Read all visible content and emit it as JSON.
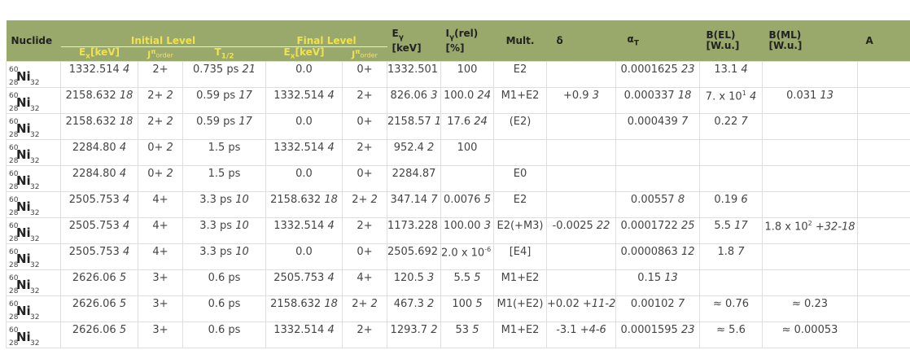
{
  "header": {
    "nuclide": "Nuclide",
    "initial_level": "Initial Level",
    "final_level": "Final Level",
    "egamma_top": "E",
    "egamma_sub": "γ",
    "egamma_unit": "[keV]",
    "igamma_top": "I",
    "igamma_sub": "γ",
    "igamma_rel": "(rel)",
    "igamma_unit": "[%]",
    "mult": "Mult.",
    "delta": "δ",
    "alpha": "α",
    "alpha_sub": "T",
    "bel": "B(EL)",
    "bel_unit": "[W.u.]",
    "bml": "B(ML)",
    "bml_unit": "[W.u.]",
    "last_col": "A",
    "ex_label": "E",
    "ex_sub": "x",
    "ex_unit": "[keV]",
    "jpi_label": "J",
    "jpi_sup": "π",
    "jpi_sub": "order",
    "t_half": "T",
    "t_half_sub": "1/2"
  },
  "rows": [
    {
      "A": "60",
      "sym": "Ni",
      "Z": "28",
      "N": "32",
      "ex_i": "1332.514",
      "ex_i_u": "4",
      "j_i": "2+",
      "j_i_o": "",
      "t_half": "0.735 ps",
      "t_half_u": "21",
      "ex_f": "0.0",
      "ex_f_u": "",
      "j_f": "0+",
      "j_f_o": "",
      "eg": "1332.501",
      "eg_u": "5",
      "ig": "100",
      "ig_u": "",
      "mult": "E2",
      "delta": "",
      "delta_u": "",
      "alpha": "0.0001625",
      "alpha_u": "23",
      "bel": "13.1",
      "bel_u": "4",
      "bml": "",
      "bml_u": ""
    },
    {
      "A": "60",
      "sym": "Ni",
      "Z": "28",
      "N": "32",
      "ex_i": "2158.632",
      "ex_i_u": "18",
      "j_i": "2+",
      "j_i_o": "2",
      "t_half": "0.59 ps",
      "t_half_u": "17",
      "ex_f": "1332.514",
      "ex_f_u": "4",
      "j_f": "2+",
      "j_f_o": "",
      "eg": "826.06",
      "eg_u": "3",
      "ig": "100.0",
      "ig_u": "24",
      "mult": "M1+E2",
      "delta": "+0.9",
      "delta_u": "3",
      "alpha": "0.000337",
      "alpha_u": "18",
      "bel": "7. x 10",
      "bel_sup": "1",
      "bel_u": "4",
      "bml": "0.031",
      "bml_u": "13"
    },
    {
      "A": "60",
      "sym": "Ni",
      "Z": "28",
      "N": "32",
      "ex_i": "2158.632",
      "ex_i_u": "18",
      "j_i": "2+",
      "j_i_o": "2",
      "t_half": "0.59 ps",
      "t_half_u": "17",
      "ex_f": "0.0",
      "ex_f_u": "",
      "j_f": "0+",
      "j_f_o": "",
      "eg": "2158.57",
      "eg_u": "10",
      "ig": "17.6",
      "ig_u": "24",
      "mult": "(E2)",
      "delta": "",
      "delta_u": "",
      "alpha": "0.000439",
      "alpha_u": "7",
      "bel": "0.22",
      "bel_u": "7",
      "bml": "",
      "bml_u": ""
    },
    {
      "A": "60",
      "sym": "Ni",
      "Z": "28",
      "N": "32",
      "ex_i": "2284.80",
      "ex_i_u": "4",
      "j_i": "0+",
      "j_i_o": "2",
      "t_half": "1.5 ps",
      "t_half_u": "",
      "ex_f": "1332.514",
      "ex_f_u": "4",
      "j_f": "2+",
      "j_f_o": "",
      "eg": "952.4",
      "eg_u": "2",
      "ig": "100",
      "ig_u": "",
      "mult": "",
      "delta": "",
      "delta_u": "",
      "alpha": "",
      "alpha_u": "",
      "bel": "",
      "bel_u": "",
      "bml": "",
      "bml_u": ""
    },
    {
      "A": "60",
      "sym": "Ni",
      "Z": "28",
      "N": "32",
      "ex_i": "2284.80",
      "ex_i_u": "4",
      "j_i": "0+",
      "j_i_o": "2",
      "t_half": "1.5 ps",
      "t_half_u": "",
      "ex_f": "0.0",
      "ex_f_u": "",
      "j_f": "0+",
      "j_f_o": "",
      "eg": "2284.87",
      "eg_u": "",
      "ig": "",
      "ig_u": "",
      "mult": "E0",
      "delta": "",
      "delta_u": "",
      "alpha": "",
      "alpha_u": "",
      "bel": "",
      "bel_u": "",
      "bml": "",
      "bml_u": ""
    },
    {
      "A": "60",
      "sym": "Ni",
      "Z": "28",
      "N": "32",
      "ex_i": "2505.753",
      "ex_i_u": "4",
      "j_i": "4+",
      "j_i_o": "",
      "t_half": "3.3 ps",
      "t_half_u": "10",
      "ex_f": "2158.632",
      "ex_f_u": "18",
      "j_f": "2+",
      "j_f_o": "2",
      "eg": "347.14",
      "eg_u": "7",
      "ig": "0.0076",
      "ig_u": "5",
      "mult": "E2",
      "delta": "",
      "delta_u": "",
      "alpha": "0.00557",
      "alpha_u": "8",
      "bel": "0.19",
      "bel_u": "6",
      "bml": "",
      "bml_u": ""
    },
    {
      "A": "60",
      "sym": "Ni",
      "Z": "28",
      "N": "32",
      "ex_i": "2505.753",
      "ex_i_u": "4",
      "j_i": "4+",
      "j_i_o": "",
      "t_half": "3.3 ps",
      "t_half_u": "10",
      "ex_f": "1332.514",
      "ex_f_u": "4",
      "j_f": "2+",
      "j_f_o": "",
      "eg": "1173.228",
      "eg_u": "3",
      "ig": "100.00",
      "ig_u": "3",
      "mult": "E2(+M3)",
      "delta": "-0.0025",
      "delta_u": "22",
      "alpha": "0.0001722",
      "alpha_u": "25",
      "bel": "5.5",
      "bel_u": "17",
      "bml": "1.8 x 10",
      "bml_sup": "2",
      "bml_u": "+32-18"
    },
    {
      "A": "60",
      "sym": "Ni",
      "Z": "28",
      "N": "32",
      "ex_i": "2505.753",
      "ex_i_u": "4",
      "j_i": "4+",
      "j_i_o": "",
      "t_half": "3.3 ps",
      "t_half_u": "10",
      "ex_f": "0.0",
      "ex_f_u": "",
      "j_f": "0+",
      "j_f_o": "",
      "eg": "2505.692",
      "eg_u": "5",
      "ig": "2.0 x 10",
      "ig_sup": "-6",
      "ig_u": "4",
      "mult": "[E4]",
      "delta": "",
      "delta_u": "",
      "alpha": "0.0000863",
      "alpha_u": "12",
      "bel": "1.8",
      "bel_u": "7",
      "bml": "",
      "bml_u": ""
    },
    {
      "A": "60",
      "sym": "Ni",
      "Z": "28",
      "N": "32",
      "ex_i": "2626.06",
      "ex_i_u": "5",
      "j_i": "3+",
      "j_i_o": "",
      "t_half": "0.6 ps",
      "t_half_u": "",
      "ex_f": "2505.753",
      "ex_f_u": "4",
      "j_f": "4+",
      "j_f_o": "",
      "eg": "120.5",
      "eg_u": "3",
      "ig": "5.5",
      "ig_u": "5",
      "mult": "M1+E2",
      "delta": "",
      "delta_u": "",
      "alpha": "0.15",
      "alpha_u": "13",
      "bel": "",
      "bel_u": "",
      "bml": "",
      "bml_u": ""
    },
    {
      "A": "60",
      "sym": "Ni",
      "Z": "28",
      "N": "32",
      "ex_i": "2626.06",
      "ex_i_u": "5",
      "j_i": "3+",
      "j_i_o": "",
      "t_half": "0.6 ps",
      "t_half_u": "",
      "ex_f": "2158.632",
      "ex_f_u": "18",
      "j_f": "2+",
      "j_f_o": "2",
      "eg": "467.3",
      "eg_u": "2",
      "ig": "100",
      "ig_u": "5",
      "mult": "M1(+E2)",
      "delta": "+0.02",
      "delta_u": "+11-27",
      "alpha": "0.00102",
      "alpha_u": "7",
      "bel": "≈ 0.76",
      "bel_u": "",
      "bml": "≈ 0.23",
      "bml_u": ""
    },
    {
      "A": "60",
      "sym": "Ni",
      "Z": "28",
      "N": "32",
      "ex_i": "2626.06",
      "ex_i_u": "5",
      "j_i": "3+",
      "j_i_o": "",
      "t_half": "0.6 ps",
      "t_half_u": "",
      "ex_f": "1332.514",
      "ex_f_u": "4",
      "j_f": "2+",
      "j_f_o": "",
      "eg": "1293.7",
      "eg_u": "2",
      "ig": "53",
      "ig_u": "5",
      "mult": "M1+E2",
      "delta": "-3.1",
      "delta_u": "+4-6",
      "alpha": "0.0001595",
      "alpha_u": "23",
      "bel": "≈ 5.6",
      "bel_u": "",
      "bml": "≈ 0.00053",
      "bml_u": ""
    }
  ]
}
